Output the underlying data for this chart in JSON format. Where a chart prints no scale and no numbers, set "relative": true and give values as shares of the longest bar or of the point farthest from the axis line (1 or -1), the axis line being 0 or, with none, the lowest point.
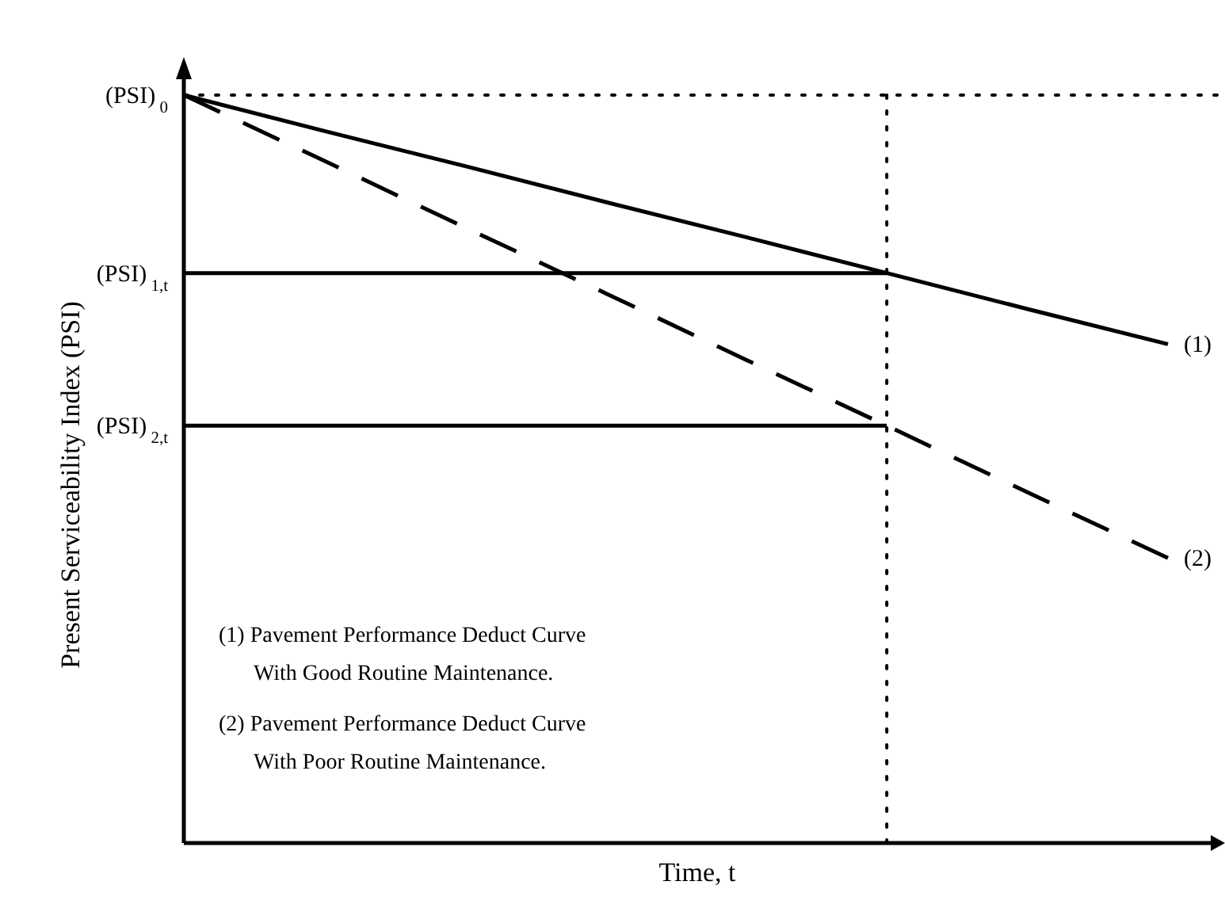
{
  "chart_data": {
    "type": "line",
    "relative": true,
    "xlabel": "Time, t",
    "ylabel": "Present Serviceability Index (PSI)",
    "categories": [
      null,
      null,
      null,
      null,
      null,
      null,
      null,
      null
    ],
    "series": [
      {
        "name": "(1)",
        "color": "#000000",
        "line_style": "solid",
        "values": [
          1,
          0.952,
          0.905,
          0.857,
          0.81,
          0.762,
          0.714,
          0.667
        ]
      },
      {
        "name": "(2)",
        "color": "#000000",
        "line_style": "dashed",
        "values": [
          1,
          0.912,
          0.823,
          0.735,
          0.646,
          0.558,
          0.469,
          0.381
        ]
      },
      {
        "name": "(PSI)$_{1,t}$",
        "color": "#000000",
        "line_style": "solid",
        "values": [
          0.762,
          0.762,
          0.762,
          0.762,
          0.762,
          0.762,
          null,
          null
        ]
      },
      {
        "name": "(PSI)$_{2,t}$",
        "color": "#000000",
        "line_style": "solid",
        "values": [
          0.558,
          0.558,
          0.558,
          0.558,
          0.558,
          0.558,
          null,
          null
        ]
      }
    ],
    "ref_lines": [
      {
        "axis": "y",
        "value": 1,
        "label": "(PSI)$_{0}$",
        "line_style": "dotted"
      }
    ],
    "annotations": [
      "(1) Pavement Performance Deduct Curve\nWith Good Routine Maintenance.",
      "(2) Pavement Performance Deduct Curve\nWith Poor Routine Maintenance."
    ],
    "grid": false,
    "marker": "none"
  }
}
